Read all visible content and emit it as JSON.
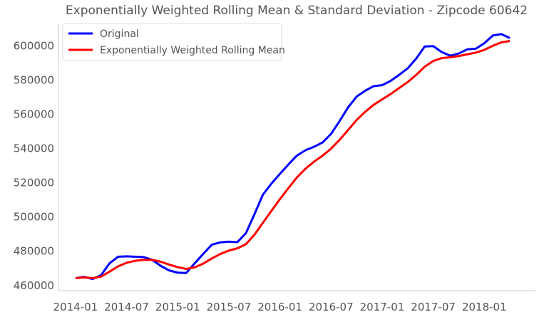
{
  "chart_data": {
    "type": "line",
    "title": "Exponentially Weighted Rolling Mean & Standard Deviation - Zipcode 60642",
    "xlabel": "",
    "ylabel": "",
    "ylim": [
      457000,
      613000
    ],
    "xlim": [
      "2013-11",
      "2018-07"
    ],
    "grid": false,
    "legend_position": "top-left",
    "x": [
      "2014-01",
      "2014-02",
      "2014-03",
      "2014-04",
      "2014-05",
      "2014-06",
      "2014-07",
      "2014-08",
      "2014-09",
      "2014-10",
      "2014-11",
      "2014-12",
      "2015-01",
      "2015-02",
      "2015-03",
      "2015-04",
      "2015-05",
      "2015-06",
      "2015-07",
      "2015-08",
      "2015-09",
      "2015-10",
      "2015-11",
      "2015-12",
      "2016-01",
      "2016-02",
      "2016-03",
      "2016-04",
      "2016-05",
      "2016-06",
      "2016-07",
      "2016-08",
      "2016-09",
      "2016-10",
      "2016-11",
      "2016-12",
      "2017-01",
      "2017-02",
      "2017-03",
      "2017-04",
      "2017-05",
      "2017-06",
      "2017-07",
      "2017-08",
      "2017-09",
      "2017-10",
      "2017-11",
      "2017-12",
      "2018-01",
      "2018-02",
      "2018-03",
      "2018-04"
    ],
    "x_tick_labels": [
      "2014-01",
      "2014-07",
      "2015-01",
      "2015-07",
      "2016-01",
      "2016-07",
      "2017-01",
      "2017-07",
      "2018-01"
    ],
    "y_ticks": [
      460000,
      480000,
      500000,
      520000,
      540000,
      560000,
      580000,
      600000
    ],
    "series": [
      {
        "name": "Original",
        "color": "#0000ff",
        "values": [
          464300,
          465000,
          463800,
          466000,
          473000,
          476800,
          477000,
          476800,
          476600,
          475000,
          471500,
          468800,
          467500,
          467300,
          473000,
          478500,
          483800,
          485200,
          485600,
          485300,
          490500,
          501500,
          513000,
          519500,
          525200,
          530700,
          535900,
          539000,
          541000,
          543500,
          548500,
          556000,
          564000,
          570300,
          573700,
          576400,
          577000,
          579500,
          583000,
          586800,
          592500,
          599600,
          599800,
          596300,
          594200,
          595500,
          597900,
          598300,
          601500,
          606000,
          606800,
          604500
        ]
      },
      {
        "name": "Exponentially Weighted Rolling Mean",
        "color": "#ff0000",
        "values": [
          464300,
          464700,
          464300,
          465200,
          468100,
          471200,
          473300,
          474400,
          475000,
          475000,
          473900,
          472200,
          470700,
          469700,
          470600,
          472800,
          475800,
          478400,
          480400,
          481700,
          484100,
          489600,
          496600,
          503600,
          510400,
          516900,
          523100,
          528200,
          532300,
          535800,
          539900,
          545000,
          550800,
          556600,
          561400,
          565500,
          568700,
          571800,
          575300,
          578800,
          583000,
          587800,
          591100,
          592800,
          593300,
          594000,
          595000,
          596000,
          597600,
          600000,
          602000,
          602800
        ]
      }
    ]
  }
}
